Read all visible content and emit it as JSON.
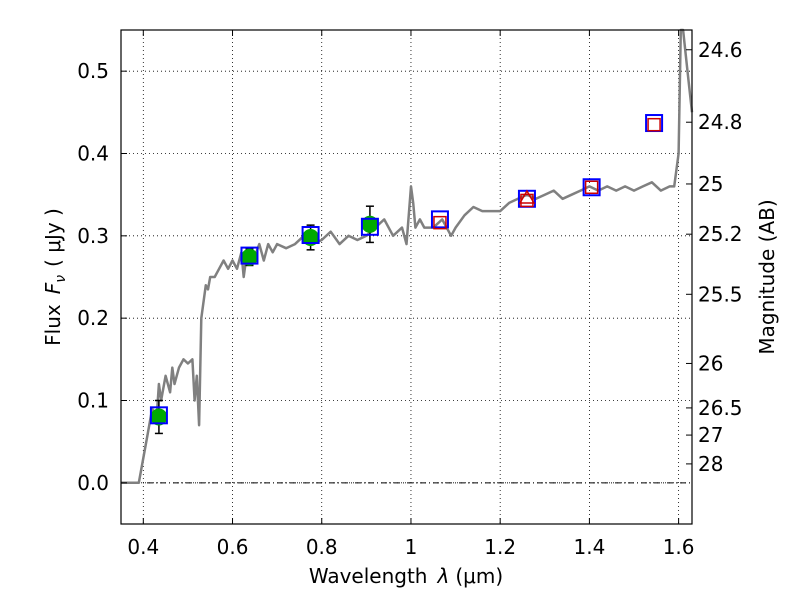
{
  "chart_data": {
    "type": "scatter",
    "xlabel": {
      "prefix": "Wavelength",
      "symbol": "λ",
      "unit": "(μm)"
    },
    "ylabel": {
      "prefix": "Flux",
      "symbol": "F",
      "subscript": "ν",
      "unit": "( μJy )"
    },
    "y2label": "Magnitude (AB)",
    "xlim": [
      0.35,
      1.63
    ],
    "ylim": [
      -0.05,
      0.55
    ],
    "grid": true,
    "x_ticks": [
      0.4,
      0.6,
      0.8,
      1.0,
      1.2,
      1.4,
      1.6
    ],
    "x_tick_labels": [
      "0.4",
      "0.6",
      "0.8",
      "1",
      "1.2",
      "1.4",
      "1.6"
    ],
    "y_ticks": [
      0.0,
      0.1,
      0.2,
      0.3,
      0.4,
      0.5
    ],
    "y_tick_labels": [
      "0.0",
      "0.1",
      "0.2",
      "0.3",
      "0.4",
      "0.5"
    ],
    "mag_ticks": [
      {
        "label": "24.6",
        "flux": 0.526
      },
      {
        "label": "24.8",
        "flux": 0.438
      },
      {
        "label": "25",
        "flux": 0.363
      },
      {
        "label": "25.2",
        "flux": 0.302
      },
      {
        "label": "25.5",
        "flux": 0.229
      },
      {
        "label": "26",
        "flux": 0.145
      },
      {
        "label": "26.5",
        "flux": 0.091
      },
      {
        "label": "27",
        "flux": 0.058
      },
      {
        "label": "28",
        "flux": 0.023
      }
    ],
    "model_spectrum": {
      "color": "#808080",
      "x": [
        0.35,
        0.39,
        0.4,
        0.41,
        0.42,
        0.43,
        0.435,
        0.44,
        0.45,
        0.46,
        0.465,
        0.47,
        0.48,
        0.49,
        0.5,
        0.51,
        0.515,
        0.52,
        0.525,
        0.53,
        0.54,
        0.545,
        0.55,
        0.56,
        0.57,
        0.58,
        0.59,
        0.6,
        0.61,
        0.62,
        0.625,
        0.63,
        0.64,
        0.65,
        0.66,
        0.67,
        0.68,
        0.69,
        0.7,
        0.72,
        0.74,
        0.76,
        0.78,
        0.8,
        0.82,
        0.84,
        0.86,
        0.88,
        0.9,
        0.92,
        0.94,
        0.96,
        0.98,
        0.99,
        1.0,
        1.005,
        1.01,
        1.02,
        1.03,
        1.05,
        1.07,
        1.09,
        1.1,
        1.12,
        1.14,
        1.16,
        1.18,
        1.2,
        1.22,
        1.24,
        1.26,
        1.28,
        1.3,
        1.32,
        1.34,
        1.36,
        1.38,
        1.4,
        1.42,
        1.44,
        1.46,
        1.48,
        1.5,
        1.52,
        1.54,
        1.56,
        1.58,
        1.59,
        1.6,
        1.605,
        1.61,
        1.62,
        1.63
      ],
      "y": [
        0.0,
        0.0,
        0.03,
        0.06,
        0.09,
        0.08,
        0.12,
        0.1,
        0.13,
        0.11,
        0.14,
        0.12,
        0.14,
        0.15,
        0.145,
        0.15,
        0.1,
        0.13,
        0.07,
        0.2,
        0.24,
        0.235,
        0.25,
        0.25,
        0.26,
        0.27,
        0.26,
        0.27,
        0.26,
        0.28,
        0.25,
        0.27,
        0.28,
        0.275,
        0.29,
        0.27,
        0.29,
        0.28,
        0.29,
        0.285,
        0.29,
        0.3,
        0.29,
        0.295,
        0.305,
        0.29,
        0.3,
        0.295,
        0.3,
        0.31,
        0.32,
        0.3,
        0.31,
        0.29,
        0.36,
        0.34,
        0.31,
        0.32,
        0.31,
        0.31,
        0.32,
        0.3,
        0.31,
        0.325,
        0.335,
        0.33,
        0.33,
        0.33,
        0.34,
        0.345,
        0.35,
        0.345,
        0.35,
        0.355,
        0.345,
        0.35,
        0.355,
        0.36,
        0.355,
        0.36,
        0.355,
        0.36,
        0.355,
        0.36,
        0.365,
        0.355,
        0.36,
        0.36,
        0.4,
        0.55,
        0.55,
        0.5,
        0.45
      ]
    },
    "series": [
      {
        "marker": "circle",
        "color": "#00aa00",
        "points": [
          {
            "x": 0.435,
            "y": 0.08,
            "yerr": 0.02
          },
          {
            "x": 0.638,
            "y": 0.274,
            "yerr": 0.01
          },
          {
            "x": 0.775,
            "y": 0.298,
            "yerr": 0.015
          },
          {
            "x": 0.908,
            "y": 0.314,
            "yerr": 0.022
          }
        ]
      },
      {
        "marker": "square-large",
        "color": "#0000ff",
        "points": [
          {
            "x": 0.435,
            "y": 0.082
          },
          {
            "x": 0.638,
            "y": 0.276
          },
          {
            "x": 0.775,
            "y": 0.301
          },
          {
            "x": 0.908,
            "y": 0.311
          },
          {
            "x": 1.065,
            "y": 0.32
          },
          {
            "x": 1.26,
            "y": 0.345
          },
          {
            "x": 1.405,
            "y": 0.359
          },
          {
            "x": 1.545,
            "y": 0.437
          }
        ]
      },
      {
        "marker": "square-small",
        "color": "#cc0000",
        "points": [
          {
            "x": 1.065,
            "y": 0.316
          },
          {
            "x": 1.26,
            "y": 0.343
          },
          {
            "x": 1.405,
            "y": 0.359
          },
          {
            "x": 1.545,
            "y": 0.435
          }
        ]
      },
      {
        "marker": "triangle",
        "color": "#cc0000",
        "points": [
          {
            "x": 1.26,
            "y": 0.346
          }
        ]
      }
    ]
  }
}
